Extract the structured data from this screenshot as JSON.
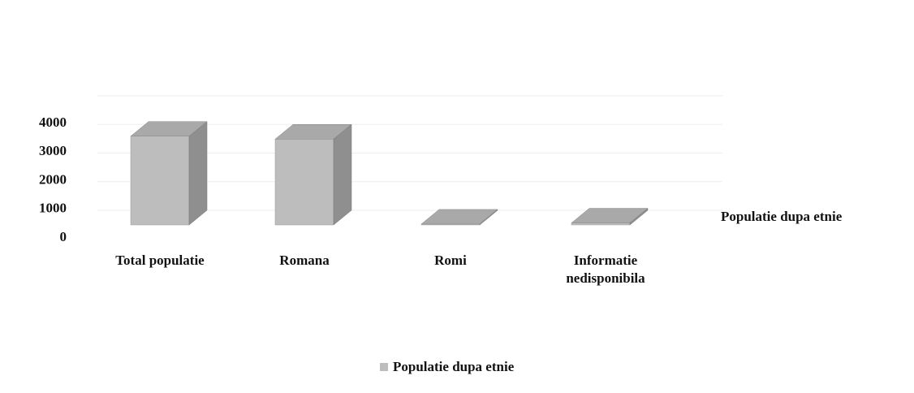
{
  "chart_data": {
    "type": "bar3d",
    "categories": [
      "Total populatie",
      "Romana",
      "Romi",
      "Informatie nedisponibila"
    ],
    "series": [
      {
        "name": "Populatie dupa etnie",
        "color": "#bdbdbd",
        "values": [
          3100,
          3000,
          30,
          70
        ]
      }
    ],
    "ylim": [
      0,
      4000
    ],
    "yticks": [
      0,
      1000,
      2000,
      3000,
      4000
    ],
    "grid": true,
    "legend": "bottom"
  }
}
